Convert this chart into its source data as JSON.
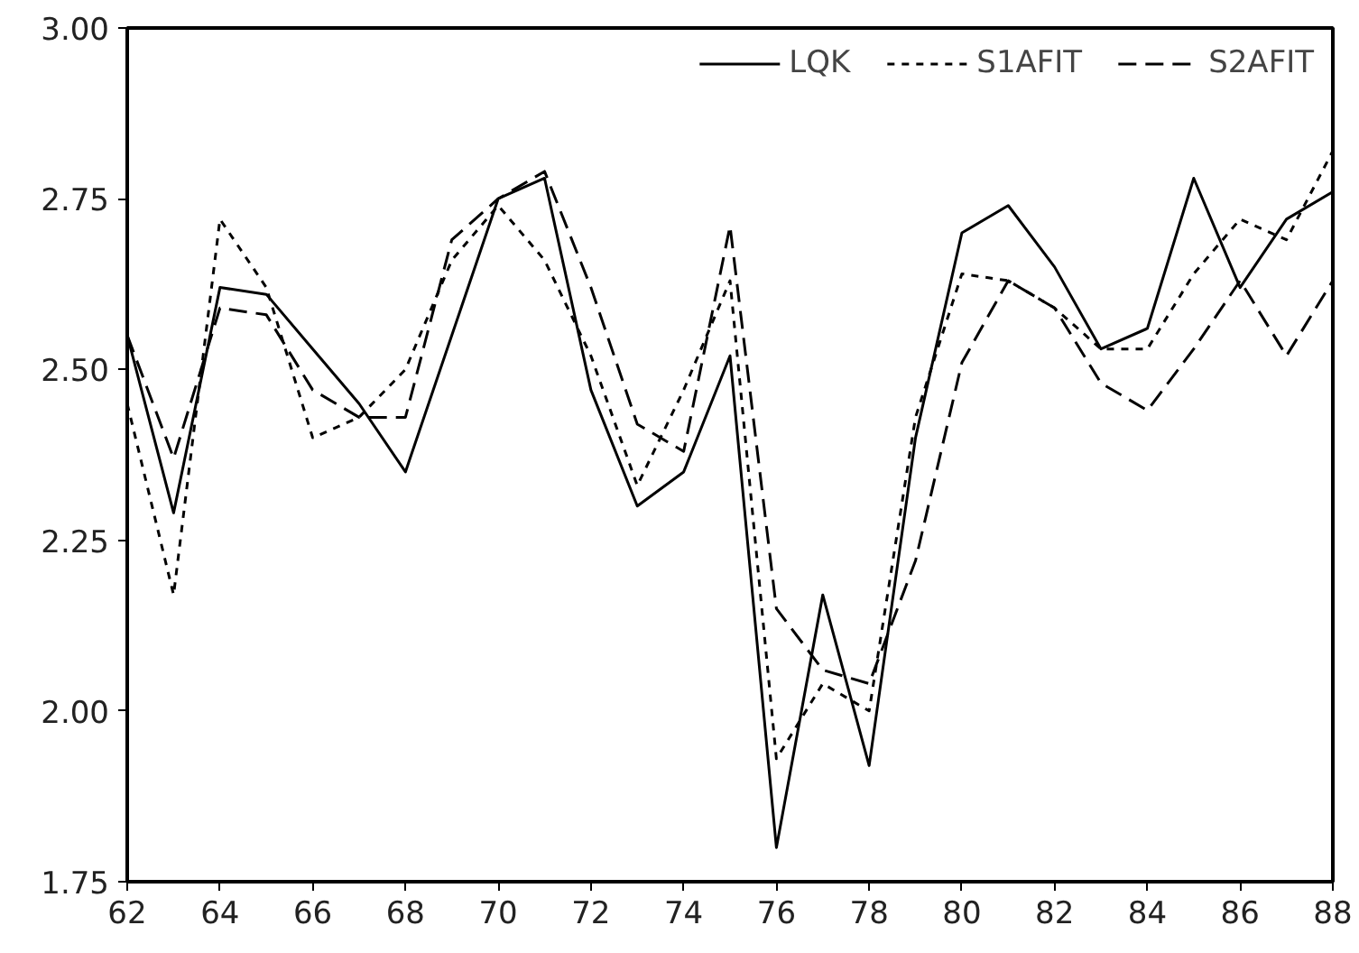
{
  "chart_data": {
    "type": "line",
    "x": [
      62,
      63,
      64,
      65,
      66,
      67,
      68,
      69,
      70,
      71,
      72,
      73,
      74,
      75,
      76,
      77,
      78,
      79,
      80,
      81,
      82,
      83,
      84,
      85,
      86,
      87,
      88
    ],
    "series": [
      {
        "name": "LQK",
        "color": "#000000",
        "line_style": "solid",
        "values": [
          2.55,
          2.29,
          2.62,
          2.61,
          2.53,
          2.45,
          2.35,
          2.55,
          2.75,
          2.78,
          2.47,
          2.3,
          2.35,
          2.52,
          1.8,
          2.17,
          1.92,
          2.4,
          2.7,
          2.74,
          2.65,
          2.53,
          2.56,
          2.78,
          2.62,
          2.72,
          2.76
        ]
      },
      {
        "name": "S1AFIT",
        "color": "#000000",
        "line_style": "dotted",
        "values": [
          2.45,
          2.17,
          2.72,
          2.62,
          2.4,
          2.43,
          2.5,
          2.66,
          2.74,
          2.66,
          2.52,
          2.33,
          2.47,
          2.63,
          1.93,
          2.04,
          2.0,
          2.43,
          2.64,
          2.63,
          2.59,
          2.53,
          2.53,
          2.64,
          2.72,
          2.69,
          2.82
        ]
      },
      {
        "name": "S2AFIT",
        "color": "#000000",
        "line_style": "dashed",
        "values": [
          2.55,
          2.37,
          2.59,
          2.58,
          2.47,
          2.43,
          2.43,
          2.69,
          2.75,
          2.79,
          2.62,
          2.42,
          2.38,
          2.71,
          2.15,
          2.06,
          2.04,
          2.22,
          2.51,
          2.63,
          2.59,
          2.48,
          2.44,
          2.53,
          2.63,
          2.52,
          2.63
        ]
      }
    ],
    "xlim": [
      62,
      88
    ],
    "xticks": [
      62,
      64,
      66,
      68,
      70,
      72,
      74,
      76,
      78,
      80,
      82,
      84,
      86,
      88
    ],
    "ylim": [
      1.75,
      3.0
    ],
    "yticks": [
      {
        "value": 1.75,
        "label": "1.75"
      },
      {
        "value": 2.0,
        "label": "2.00"
      },
      {
        "value": 2.25,
        "label": "2.25"
      },
      {
        "value": 2.5,
        "label": "2.50"
      },
      {
        "value": 2.75,
        "label": "2.75"
      },
      {
        "value": 3.0,
        "label": "3.00"
      }
    ],
    "grid": false,
    "legend": "top right",
    "marker": "none"
  }
}
